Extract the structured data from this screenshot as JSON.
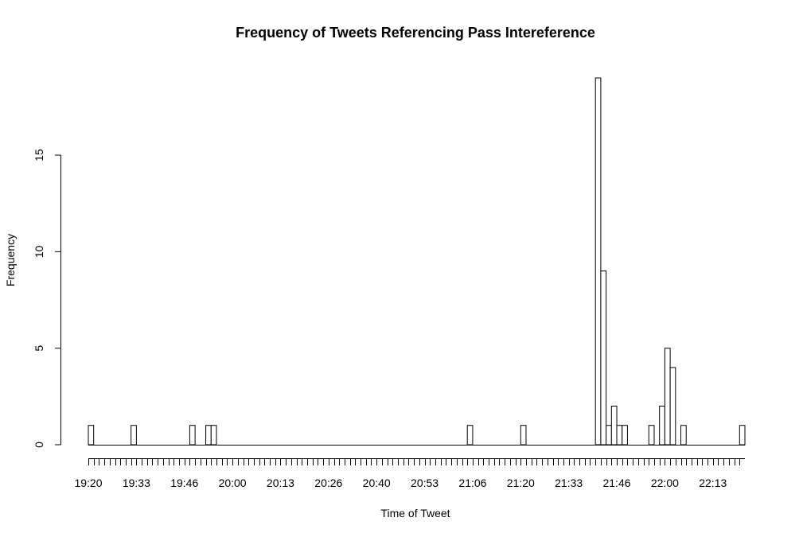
{
  "chart_data": {
    "type": "bar",
    "title": "Frequency of Tweets Referencing Pass Intereference",
    "xlabel": "Time of Tweet",
    "ylabel": "Frequency",
    "ylim": [
      0,
      19
    ],
    "yticks": [
      0,
      5,
      10,
      15
    ],
    "bin_minutes": 1.5,
    "x_start": "19:20",
    "x_tick_labels": [
      "19:20",
      "19:33",
      "19:46",
      "20:00",
      "20:13",
      "20:26",
      "20:40",
      "20:53",
      "21:06",
      "21:20",
      "21:33",
      "21:46",
      "22:00",
      "22:13"
    ],
    "x_tick_label_every": 9,
    "num_bins": 123,
    "grid": false,
    "categories": [
      "19:20",
      "19:21.5",
      "19:23",
      "19:24.5",
      "19:26",
      "19:27.5",
      "19:29",
      "19:30.5",
      "19:32",
      "19:33.5",
      "19:35",
      "19:36.5",
      "19:38",
      "19:39.5",
      "19:41",
      "19:42.5",
      "19:44",
      "19:45.5",
      "19:47",
      "19:48.5",
      "19:50",
      "19:51.5",
      "19:53",
      "19:54.5",
      "19:56",
      "19:57.5",
      "19:59",
      "20:00.5",
      "20:02",
      "20:03.5",
      "20:05",
      "20:06.5",
      "20:08",
      "20:09.5",
      "20:11",
      "20:12.5",
      "20:14",
      "20:15.5",
      "20:17",
      "20:18.5",
      "20:20",
      "20:21.5",
      "20:23",
      "20:24.5",
      "20:26",
      "20:27.5",
      "20:29",
      "20:30.5",
      "20:32",
      "20:33.5",
      "20:35",
      "20:36.5",
      "20:38",
      "20:39.5",
      "20:41",
      "20:42.5",
      "20:44",
      "20:45.5",
      "20:47",
      "20:48.5",
      "20:50",
      "20:51.5",
      "20:53",
      "20:54.5",
      "20:56",
      "20:57.5",
      "20:59",
      "21:00.5",
      "21:02",
      "21:03.5",
      "21:05",
      "21:06.5",
      "21:08",
      "21:09.5",
      "21:11",
      "21:12.5",
      "21:14",
      "21:15.5",
      "21:17",
      "21:18.5",
      "21:20",
      "21:21.5",
      "21:23",
      "21:24.5",
      "21:26",
      "21:27.5",
      "21:29",
      "21:30.5",
      "21:32",
      "21:33.5",
      "21:35",
      "21:36.5",
      "21:38",
      "21:39.5",
      "21:41",
      "21:42.5",
      "21:44",
      "21:45.5",
      "21:47",
      "21:48.5",
      "21:50",
      "21:51.5",
      "21:53",
      "21:54.5",
      "21:56",
      "21:57.5",
      "21:59",
      "22:00.5",
      "22:02",
      "22:03.5",
      "22:05",
      "22:06.5",
      "22:08",
      "22:09.5",
      "22:11",
      "22:12.5",
      "22:14",
      "22:15.5",
      "22:17",
      "22:18.5",
      "22:20",
      "22:21.5",
      "22:23"
    ],
    "values": [
      1,
      0,
      0,
      0,
      0,
      0,
      0,
      0,
      1,
      0,
      0,
      0,
      0,
      0,
      0,
      0,
      0,
      0,
      0,
      1,
      0,
      0,
      1,
      1,
      0,
      0,
      0,
      0,
      0,
      0,
      0,
      0,
      0,
      0,
      0,
      0,
      0,
      0,
      0,
      0,
      0,
      0,
      0,
      0,
      0,
      0,
      0,
      0,
      0,
      0,
      0,
      0,
      0,
      0,
      0,
      0,
      0,
      0,
      0,
      0,
      0,
      0,
      0,
      0,
      0,
      0,
      0,
      0,
      0,
      0,
      0,
      1,
      0,
      0,
      0,
      0,
      0,
      0,
      0,
      0,
      0,
      1,
      0,
      0,
      0,
      0,
      0,
      0,
      0,
      0,
      0,
      0,
      0,
      0,
      0,
      19,
      9,
      1,
      2,
      1,
      1,
      0,
      0,
      0,
      0,
      1,
      0,
      2,
      5,
      4,
      0,
      1,
      0,
      0,
      0,
      0,
      0,
      0,
      0,
      0,
      0,
      0,
      1
    ]
  }
}
